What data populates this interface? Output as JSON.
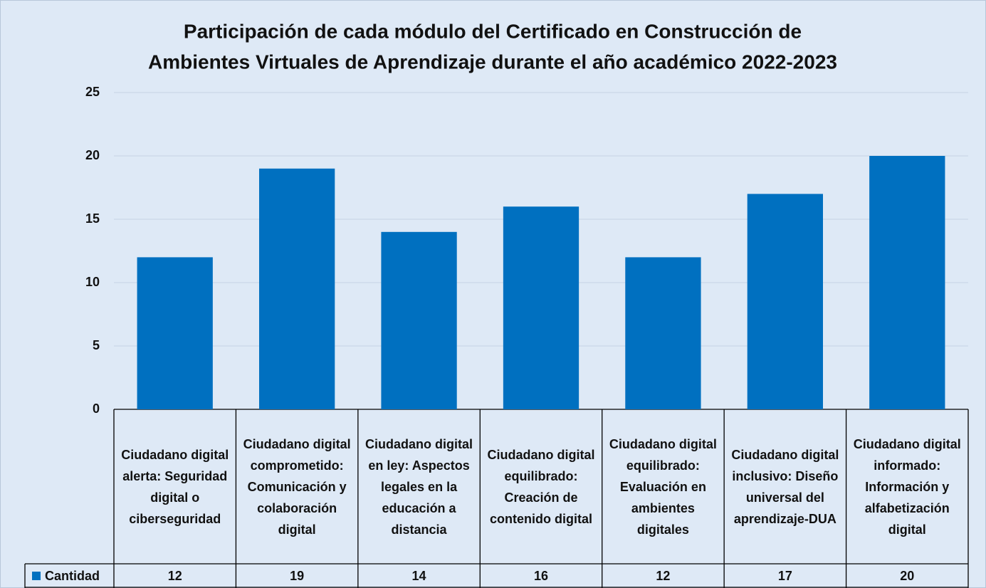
{
  "chart_data": {
    "type": "bar",
    "title": "Participación de cada módulo del Certificado en Construcción de",
    "subtitle": "Ambientes Virtuales de Aprendizaje durante el año académico 2022-2023",
    "categories": [
      "Ciudadano digital alerta: Seguridad digital o ciberseguridad",
      "Ciudadano digital comprometido: Comunicación y colaboración digital",
      "Ciudadano digital en ley: Aspectos legales en la educación a distancia",
      "Ciudadano digital equilibrado: Creación de contenido digital",
      "Ciudadano digital equilibrado: Evaluación en ambientes digitales",
      "Ciudadano digital inclusivo: Diseño universal del aprendizaje-DUA",
      "Ciudadano digital informado: Información y alfabetización digital"
    ],
    "series": [
      {
        "name": "Cantidad",
        "color": "#0070c0",
        "values": [
          12,
          19,
          14,
          16,
          12,
          17,
          20
        ]
      }
    ],
    "ylim": [
      0,
      25
    ],
    "yticks": [
      0,
      5,
      10,
      15,
      20,
      25
    ],
    "grid": true
  }
}
